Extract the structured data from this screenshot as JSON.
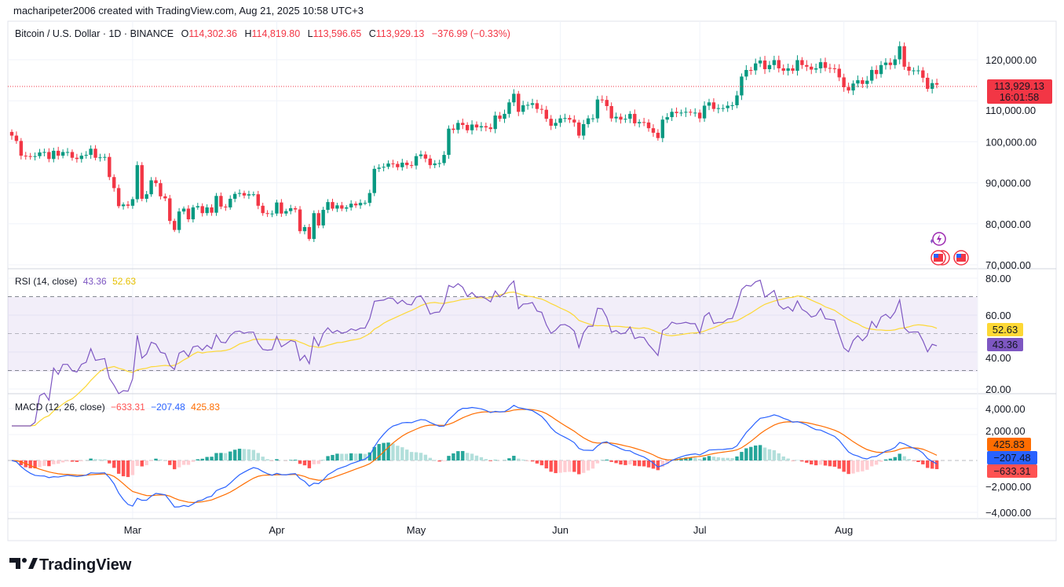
{
  "attribution": "macharipeter2006 created with TradingView.com, Aug 21, 2025 10:58 UTC+3",
  "logo_text": "TradingView",
  "legend": {
    "symbol": "Bitcoin / U.S. Dollar · 1D · BINANCE",
    "o_label": "O",
    "o": "114,302.36",
    "h_label": "H",
    "h": "114,819.80",
    "l_label": "L",
    "l": "113,596.65",
    "c_label": "C",
    "c": "113,929.13",
    "change": "−376.99 (−0.33%)"
  },
  "price_label": {
    "value": "113,929.13",
    "countdown": "16:01:58"
  },
  "rsi_legend": {
    "title": "RSI (14, close)",
    "rsi": "43.36",
    "ma": "52.63"
  },
  "macd_legend": {
    "title": "MACD (12, 26, close)",
    "hist": "−633.31",
    "macd": "−207.48",
    "signal": "425.83"
  },
  "colors": {
    "up": "#089981",
    "down": "#f23645",
    "rsi": "#7e57c2",
    "rsi_ma": "#fdd835",
    "macd": "#2962ff",
    "signal": "#ff6d00",
    "hist_up": "#26a69a",
    "hist_up_weak": "#b2dfdb",
    "hist_down": "#ff5252",
    "hist_down_weak": "#ffcdd2"
  },
  "icons": [
    "lightning-event-icon",
    "us-flag-event-icon",
    "us-flag-event-icon"
  ],
  "chart_data": {
    "type": "candlestick",
    "start_date": "2025-02-03",
    "interval": "1D",
    "first_open": 102400,
    "close": [
      101500,
      100200,
      96600,
      96500,
      96400,
      96500,
      97400,
      97500,
      95800,
      97800,
      96600,
      97500,
      97500,
      96100,
      95800,
      96600,
      96800,
      98300,
      96100,
      96200,
      96300,
      91400,
      88700,
      84300,
      84700,
      84400,
      86000,
      94300,
      86100,
      87200,
      90600,
      89900,
      86700,
      86200,
      80700,
      78500,
      83000,
      83700,
      81100,
      84000,
      84300,
      82600,
      84000,
      82700,
      86800,
      84200,
      84000,
      86100,
      87300,
      87500,
      86900,
      87200,
      87200,
      84400,
      82600,
      82400,
      82500,
      85200,
      82500,
      83100,
      83800,
      83500,
      78200,
      79200,
      76300,
      82600,
      79600,
      83400,
      85300,
      83700,
      84500,
      83700,
      84000,
      84900,
      84500,
      85100,
      85100,
      87500,
      93400,
      93700,
      93900,
      94700,
      94600,
      93800,
      94900,
      94300,
      94200,
      96500,
      96900,
      95900,
      94300,
      94700,
      94800,
      96800,
      103200,
      102900,
      104600,
      104100,
      102800,
      104200,
      103500,
      103800,
      103500,
      103100,
      106400,
      105600,
      106800,
      109600,
      111700,
      107300,
      108900,
      109000,
      109400,
      108000,
      107800,
      105600,
      103900,
      104600,
      105700,
      105800,
      105400,
      104700,
      101500,
      104300,
      105700,
      105700,
      110300,
      110200,
      108700,
      105700,
      106100,
      105400,
      105600,
      106800,
      104500,
      104800,
      104700,
      103300,
      102200,
      100900,
      105400,
      106000,
      107300,
      107000,
      107100,
      107300,
      107100,
      107100,
      105700,
      108800,
      109600,
      108000,
      108200,
      108200,
      108800,
      108900,
      111300,
      115900,
      117500,
      117400,
      119100,
      119800,
      117700,
      118700,
      119900,
      117900,
      117300,
      117900,
      117300,
      119900,
      118700,
      118300,
      117600,
      117900,
      119400,
      118000,
      117900,
      117800,
      115700,
      113300,
      112500,
      114200,
      115000,
      114100,
      114900,
      117500,
      116500,
      118700,
      119300,
      118700,
      120100,
      123300,
      118300,
      117300,
      117400,
      117400,
      115600,
      112900,
      114300,
      113929.13
    ],
    "x_ticks": [
      {
        "label": "Mar",
        "date": "2025-03-01"
      },
      {
        "label": "Apr",
        "date": "2025-04-01"
      },
      {
        "label": "May",
        "date": "2025-05-01"
      },
      {
        "label": "Jun",
        "date": "2025-06-01"
      },
      {
        "label": "Jul",
        "date": "2025-07-01"
      },
      {
        "label": "Aug",
        "date": "2025-08-01"
      }
    ],
    "price_axis": {
      "ticks": [
        "120,000.00",
        "110,000.00",
        "100,000.00",
        "90,000.00",
        "80,000.00",
        "70,000.00"
      ],
      "tick_values": [
        120000,
        110000,
        100000,
        90000,
        80000,
        70000
      ],
      "range": [
        70000,
        120000
      ]
    },
    "rsi": {
      "length": 14,
      "ma_length": 14,
      "ticks": [
        "80.00",
        "60.00",
        "40.00",
        "20.00"
      ],
      "tick_values": [
        80,
        60,
        40,
        20
      ],
      "bands": [
        70,
        50,
        30
      ]
    },
    "macd": {
      "fast": 12,
      "slow": 26,
      "signal": 9,
      "ticks": [
        "4,000.00",
        "2,000.00",
        "−2,000.00",
        "−4,000.00"
      ],
      "tick_values": [
        4000,
        2000,
        -2000,
        -4000
      ]
    },
    "current_price": 113929.13
  }
}
